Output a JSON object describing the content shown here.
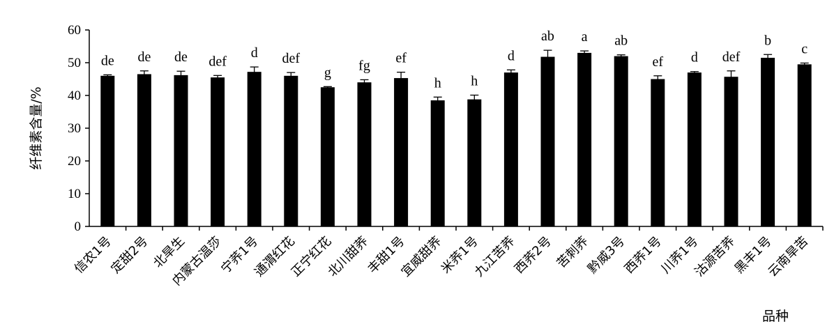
{
  "chart_data": {
    "type": "bar",
    "xlabel": "品种",
    "ylabel": "纤维素含量/%",
    "ylim": [
      0,
      60
    ],
    "yticks": [
      0,
      10,
      20,
      30,
      40,
      50,
      60
    ],
    "grid": false,
    "legend": "none",
    "bar_color": "#000000",
    "categories": [
      "信农1号",
      "定甜2号",
      "北旱生",
      "内蒙古温莎",
      "宁荞1号",
      "通渭红花",
      "正宁红花",
      "北川甜荞",
      "丰甜1号",
      "宜威甜荞",
      "米荞1号",
      "九江苦荞",
      "西荞2号",
      "苦刺荞",
      "黔威3号",
      "西荞1号",
      "川荞1号",
      "沽源苦荞",
      "黑丰1号",
      "云南旱苦"
    ],
    "values": [
      46.0,
      46.5,
      46.2,
      45.5,
      47.2,
      46.0,
      42.5,
      44.0,
      45.3,
      38.5,
      38.8,
      47.0,
      51.8,
      53.0,
      52.0,
      45.0,
      47.0,
      45.7,
      51.5,
      49.5
    ],
    "errors": [
      0.3,
      1.0,
      1.2,
      0.6,
      1.5,
      1.0,
      0.2,
      0.8,
      1.8,
      1.0,
      1.3,
      0.8,
      2.0,
      0.6,
      0.4,
      1.0,
      0.3,
      1.8,
      1.0,
      0.4
    ],
    "significance": [
      "de",
      "de",
      "de",
      "def",
      "d",
      "def",
      "g",
      "fg",
      "ef",
      "h",
      "h",
      "d",
      "ab",
      "a",
      "ab",
      "ef",
      "d",
      "def",
      "b",
      "c"
    ]
  }
}
